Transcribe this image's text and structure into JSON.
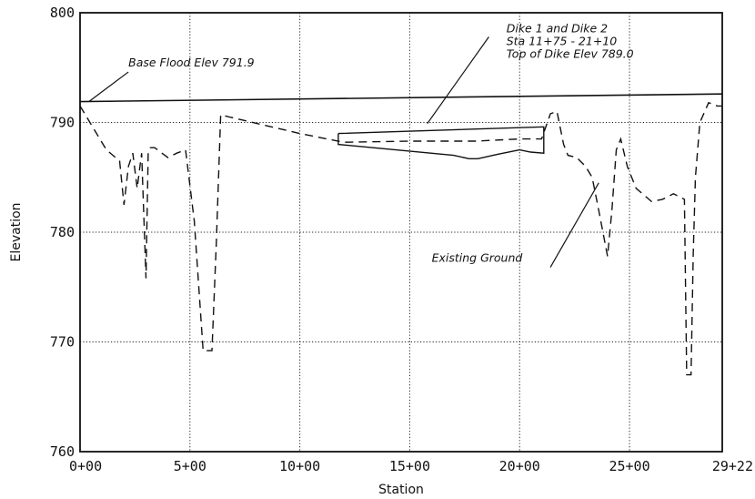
{
  "chart_data": {
    "type": "line",
    "title": "",
    "xlabel": "Station",
    "ylabel": "Elevation",
    "xlim": [
      0,
      2922
    ],
    "ylim": [
      760,
      800
    ],
    "x_ticks": [
      {
        "value": 0,
        "label": "0+00"
      },
      {
        "value": 500,
        "label": "5+00"
      },
      {
        "value": 1000,
        "label": "10+00"
      },
      {
        "value": 1500,
        "label": "15+00"
      },
      {
        "value": 2000,
        "label": "20+00"
      },
      {
        "value": 2500,
        "label": "25+00"
      },
      {
        "value": 2922,
        "label": "29+22"
      }
    ],
    "y_ticks": [
      760,
      770,
      780,
      790,
      800
    ],
    "grid": true,
    "series": [
      {
        "name": "Base Flood Elev 791.9",
        "style": "solid",
        "x": [
          0,
          2922
        ],
        "y": [
          791.9,
          792.6
        ]
      },
      {
        "name": "Existing Ground",
        "style": "dashed",
        "x": [
          0,
          60,
          120,
          180,
          200,
          220,
          240,
          260,
          280,
          300,
          310,
          320,
          340,
          400,
          440,
          480,
          520,
          560,
          590,
          600,
          620,
          640,
          680,
          1000,
          1200,
          1500,
          1800,
          2000,
          2100,
          2140,
          2170,
          2200,
          2220,
          2260,
          2300,
          2330,
          2360,
          2400,
          2420,
          2440,
          2460,
          2490,
          2530,
          2600,
          2650,
          2700,
          2750,
          2760,
          2780,
          2790,
          2800,
          2820,
          2860,
          2900,
          2922
        ],
        "y": [
          791.5,
          789.5,
          787.5,
          786.5,
          782.5,
          786.0,
          787.2,
          784.0,
          787.2,
          775.8,
          787.2,
          787.7,
          787.7,
          786.8,
          787.2,
          787.5,
          781.0,
          769.2,
          769.2,
          769.2,
          779.0,
          790.7,
          790.5,
          789.0,
          788.2,
          788.3,
          788.3,
          788.5,
          788.5,
          790.8,
          791.0,
          788.0,
          787.0,
          786.8,
          786.0,
          785.0,
          782.0,
          777.8,
          782.0,
          787.5,
          788.5,
          786.0,
          784.0,
          782.8,
          783.0,
          783.5,
          783.0,
          767.0,
          767.0,
          778.0,
          785.0,
          790.0,
          791.8,
          791.5,
          791.5
        ]
      },
      {
        "name": "Dike 1 and Dike 2",
        "style": "solid",
        "x": [
          1175,
          2110,
          2110,
          2050,
          2000,
          1900,
          1810,
          1770,
          1700,
          1175,
          1175
        ],
        "y": [
          789.0,
          789.6,
          787.2,
          787.3,
          787.5,
          787.1,
          786.7,
          786.7,
          787.0,
          788.0,
          789.0
        ]
      }
    ],
    "annotations": [
      {
        "lines": [
          "Base Flood Elev 791.9"
        ],
        "text_at": [
          220,
          795.1
        ],
        "arrow_from": [
          220,
          794.6
        ],
        "arrow_to": [
          40,
          791.9
        ]
      },
      {
        "lines": [
          "Dike 1 and Dike 2",
          "Sta 11+75 - 21+10",
          "Top of Dike Elev 789.0"
        ],
        "text_at": [
          1940,
          798.2
        ],
        "arrow_from": [
          1860,
          797.8
        ],
        "arrow_to": [
          1580,
          789.9
        ]
      },
      {
        "lines": [
          "Existing Ground"
        ],
        "text_at": [
          1600,
          777.3
        ],
        "arrow_from": [
          2140,
          776.8
        ],
        "arrow_to": [
          2360,
          784.5
        ]
      }
    ]
  }
}
